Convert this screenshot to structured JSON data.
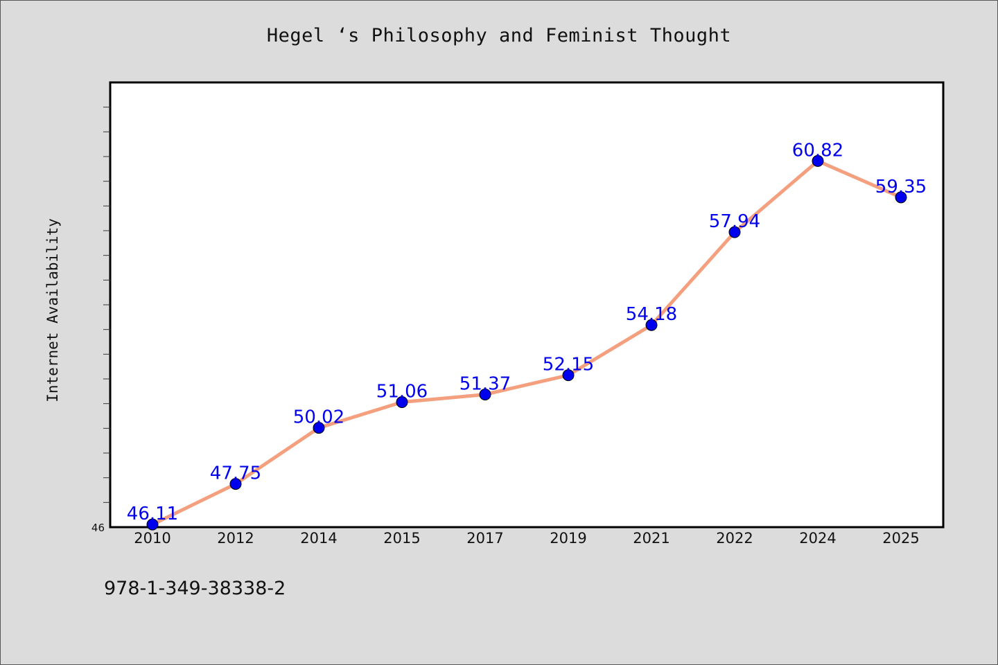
{
  "chart_data": {
    "type": "line",
    "title": "Hegel ‘s Philosophy and Feminist Thought",
    "xlabel": "",
    "ylabel": "Internet Availability",
    "categories": [
      "2010",
      "2012",
      "2014",
      "2015",
      "2017",
      "2019",
      "2021",
      "2022",
      "2024",
      "2025"
    ],
    "series": [
      {
        "values": [
          46.11,
          47.75,
          50.02,
          51.06,
          51.37,
          52.15,
          54.18,
          57.94,
          60.82,
          59.35
        ],
        "line_color": "#f4a07f",
        "marker_color": "#0000ee"
      }
    ],
    "data_labels": [
      "46.11",
      "47.75",
      "50.02",
      "51.06",
      "51.37",
      "52.15",
      "54.18",
      "57.94",
      "60.82",
      "59.35"
    ],
    "ylim": [
      46,
      64
    ],
    "y_tick_labels": [
      "46"
    ],
    "grid": false,
    "legend": "none"
  },
  "footer_text": "978-1-349-38338-2",
  "colors": {
    "background": "#dcdcdc",
    "plot_background": "#ffffff",
    "line": "#f4a07f",
    "marker": "#0000ee",
    "data_label": "#0000ee"
  }
}
